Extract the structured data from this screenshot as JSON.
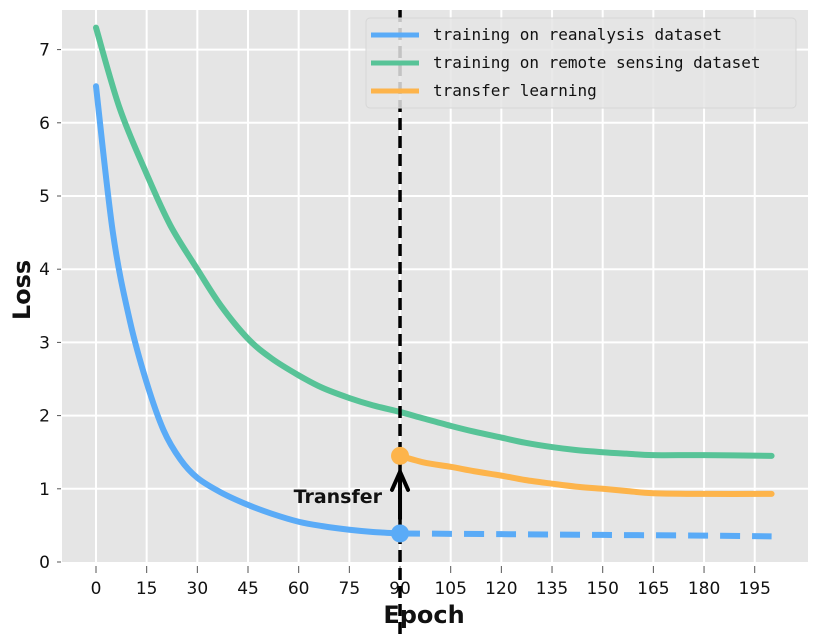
{
  "chart_data": {
    "type": "line",
    "title": "",
    "xlabel": "Epoch",
    "ylabel": "Loss",
    "xlim": [
      -10,
      210
    ],
    "ylim": [
      0,
      7.5
    ],
    "xticks": [
      0,
      15,
      30,
      45,
      60,
      75,
      90,
      105,
      120,
      135,
      150,
      165,
      180,
      195
    ],
    "yticks": [
      0,
      1,
      2,
      3,
      4,
      5,
      6,
      7
    ],
    "grid": true,
    "legend_position": "top-right",
    "series": [
      {
        "name": "training on reanalysis dataset",
        "color": "#5aabf7",
        "x": [
          0,
          5,
          10,
          15,
          20,
          25,
          30,
          37,
          45,
          52,
          60,
          67,
          75,
          82,
          90
        ],
        "y": [
          6.5,
          4.5,
          3.3,
          2.45,
          1.8,
          1.4,
          1.15,
          0.95,
          0.78,
          0.66,
          0.55,
          0.49,
          0.44,
          0.41,
          0.39
        ],
        "continuation": {
          "style": "dashed",
          "x": [
            90,
            120,
            150,
            180,
            200
          ],
          "y": [
            0.39,
            0.38,
            0.37,
            0.36,
            0.35
          ]
        }
      },
      {
        "name": "training on remote sensing dataset",
        "color": "#57c397",
        "x": [
          0,
          7,
          15,
          22,
          30,
          37,
          45,
          52,
          60,
          67,
          75,
          82,
          90,
          97,
          105,
          112,
          120,
          127,
          135,
          142,
          150,
          157,
          165,
          180,
          200
        ],
        "y": [
          7.3,
          6.2,
          5.3,
          4.6,
          4.0,
          3.5,
          3.05,
          2.78,
          2.55,
          2.38,
          2.24,
          2.14,
          2.05,
          1.96,
          1.86,
          1.78,
          1.7,
          1.63,
          1.57,
          1.53,
          1.5,
          1.48,
          1.46,
          1.46,
          1.45
        ]
      },
      {
        "name": "transfer learning",
        "color": "#fdb44b",
        "x": [
          90,
          97,
          105,
          112,
          120,
          127,
          135,
          142,
          150,
          157,
          165,
          180,
          200
        ],
        "y": [
          1.45,
          1.36,
          1.3,
          1.24,
          1.18,
          1.12,
          1.07,
          1.03,
          1.0,
          0.97,
          0.94,
          0.93,
          0.93
        ]
      }
    ],
    "annotations": {
      "vline_epoch": 90,
      "arrow_label": "Transfer",
      "arrow_from": [
        90,
        0.39
      ],
      "arrow_to": [
        90,
        1.45
      ]
    }
  }
}
